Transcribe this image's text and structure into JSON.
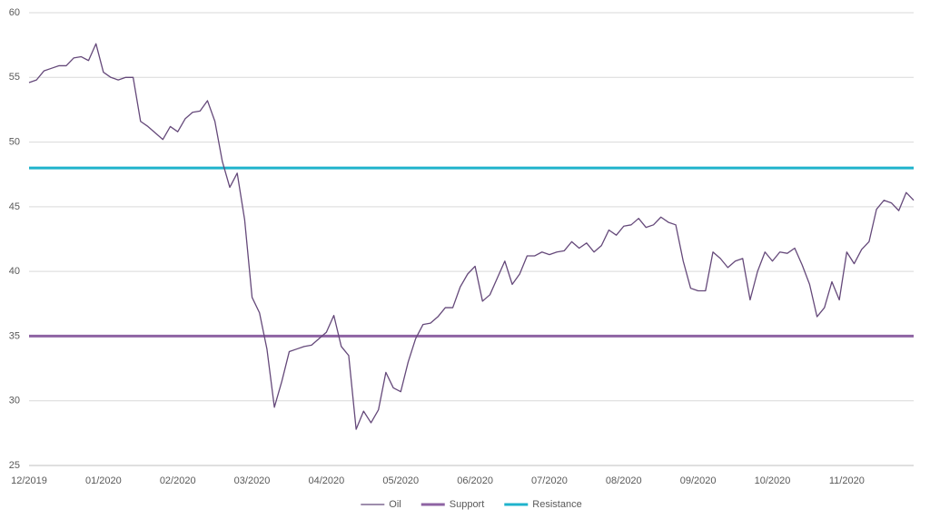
{
  "chart_data": {
    "type": "line",
    "categories": [
      "12/2019",
      null,
      null,
      null,
      null,
      null,
      null,
      null,
      null,
      null,
      "01/2020",
      null,
      null,
      null,
      null,
      null,
      null,
      null,
      null,
      null,
      "02/2020",
      null,
      null,
      null,
      null,
      null,
      null,
      null,
      null,
      null,
      "03/2020",
      null,
      null,
      null,
      null,
      null,
      null,
      null,
      null,
      null,
      "04/2020",
      null,
      null,
      null,
      null,
      null,
      null,
      null,
      null,
      null,
      "05/2020",
      null,
      null,
      null,
      null,
      null,
      null,
      null,
      null,
      null,
      "06/2020",
      null,
      null,
      null,
      null,
      null,
      null,
      null,
      null,
      null,
      "07/2020",
      null,
      null,
      null,
      null,
      null,
      null,
      null,
      null,
      null,
      "08/2020",
      null,
      null,
      null,
      null,
      null,
      null,
      null,
      null,
      null,
      "09/2020",
      null,
      null,
      null,
      null,
      null,
      null,
      null,
      null,
      null,
      "10/2020",
      null,
      null,
      null,
      null,
      null,
      null,
      null,
      null,
      null,
      "11/2020",
      null,
      null,
      null,
      null,
      null,
      null,
      null,
      null,
      null
    ],
    "series": [
      {
        "name": "Oil",
        "color": "#65497a",
        "values": [
          54.6,
          54.8,
          55.5,
          55.7,
          55.9,
          55.9,
          56.5,
          56.6,
          56.3,
          57.6,
          55.4,
          55.0,
          54.8,
          55.0,
          55.0,
          51.6,
          51.2,
          50.7,
          50.2,
          51.2,
          50.8,
          51.8,
          52.3,
          52.4,
          53.2,
          51.6,
          48.5,
          46.5,
          47.6,
          44.0,
          38.0,
          36.8,
          34.0,
          29.5,
          31.5,
          33.8,
          34.0,
          34.2,
          34.3,
          34.8,
          35.3,
          36.6,
          34.2,
          33.5,
          27.8,
          29.2,
          28.3,
          29.3,
          32.2,
          31.0,
          30.7,
          33.0,
          34.8,
          35.9,
          36.0,
          36.5,
          37.2,
          37.2,
          38.8,
          39.8,
          40.4,
          37.7,
          38.2,
          39.5,
          40.8,
          39.0,
          39.8,
          41.2,
          41.2,
          41.5,
          41.3,
          41.5,
          41.6,
          42.3,
          41.8,
          42.2,
          41.5,
          42.0,
          43.2,
          42.8,
          43.5,
          43.6,
          44.1,
          43.4,
          43.6,
          44.2,
          43.8,
          43.6,
          40.8,
          38.7,
          38.5,
          38.5,
          41.5,
          41.0,
          40.3,
          40.8,
          41.0,
          37.8,
          40.0,
          41.5,
          40.8,
          41.5,
          41.4,
          41.8,
          40.5,
          39.0,
          36.5,
          37.2,
          39.2,
          37.8,
          41.5,
          40.6,
          41.7,
          42.3,
          44.8,
          45.5,
          45.3,
          44.7,
          46.1,
          45.5
        ]
      }
    ],
    "reference_lines": [
      {
        "name": "Support",
        "color": "#8e63a3",
        "value": 35
      },
      {
        "name": "Resistance",
        "color": "#1fb3cc",
        "value": 48
      }
    ],
    "ylim": [
      25,
      60
    ],
    "yticks": [
      25,
      30,
      35,
      40,
      45,
      50,
      55,
      60
    ],
    "grid": true,
    "legend": "bottom"
  }
}
